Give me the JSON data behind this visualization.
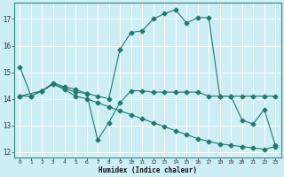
{
  "xlabel": "Humidex (Indice chaleur)",
  "bg_color": "#cdeef5",
  "grid_color": "#ffffff",
  "line_color": "#1e7b6e",
  "xlim": [
    -0.5,
    23.5
  ],
  "ylim": [
    11.8,
    17.6
  ],
  "xticks": [
    0,
    1,
    2,
    3,
    4,
    5,
    6,
    7,
    8,
    9,
    10,
    11,
    12,
    13,
    14,
    15,
    16,
    17,
    18,
    19,
    20,
    21,
    22,
    23
  ],
  "yticks": [
    12,
    13,
    14,
    15,
    16,
    17
  ],
  "line1_x": [
    0,
    1,
    2,
    3,
    4,
    5,
    6,
    7,
    8,
    9,
    10,
    11,
    12,
    13,
    14,
    15,
    16,
    17,
    18,
    19,
    20,
    21,
    22,
    23
  ],
  "line1_y": [
    15.2,
    14.1,
    14.3,
    14.6,
    14.45,
    14.35,
    14.2,
    14.1,
    14.0,
    15.85,
    16.5,
    16.55,
    17.0,
    17.2,
    17.35,
    16.85,
    17.05,
    17.05,
    14.1,
    14.1,
    13.2,
    13.05,
    13.6,
    12.25
  ],
  "line2_x": [
    0,
    1,
    2,
    3,
    4,
    5,
    6,
    7,
    8,
    9,
    10,
    11,
    12,
    13,
    14,
    15,
    16,
    17,
    18,
    19,
    20,
    21,
    22,
    23
  ],
  "line2_y": [
    14.1,
    14.1,
    14.3,
    14.55,
    14.4,
    14.25,
    14.2,
    12.45,
    13.1,
    13.85,
    14.3,
    14.3,
    14.25,
    14.25,
    14.25,
    14.25,
    14.25,
    14.1,
    14.1,
    14.1,
    14.1,
    14.1,
    14.1,
    14.1
  ],
  "line3_x": [
    0,
    2,
    3,
    4,
    5,
    6,
    7,
    8,
    9,
    10,
    11,
    12,
    13,
    14,
    15,
    16,
    17,
    18,
    19,
    20,
    21,
    22,
    23
  ],
  "line3_y": [
    14.1,
    14.3,
    14.55,
    14.35,
    14.1,
    14.0,
    13.85,
    13.7,
    13.55,
    13.4,
    13.25,
    13.1,
    12.95,
    12.8,
    12.65,
    12.5,
    12.4,
    12.3,
    12.25,
    12.2,
    12.15,
    12.1,
    12.2
  ]
}
